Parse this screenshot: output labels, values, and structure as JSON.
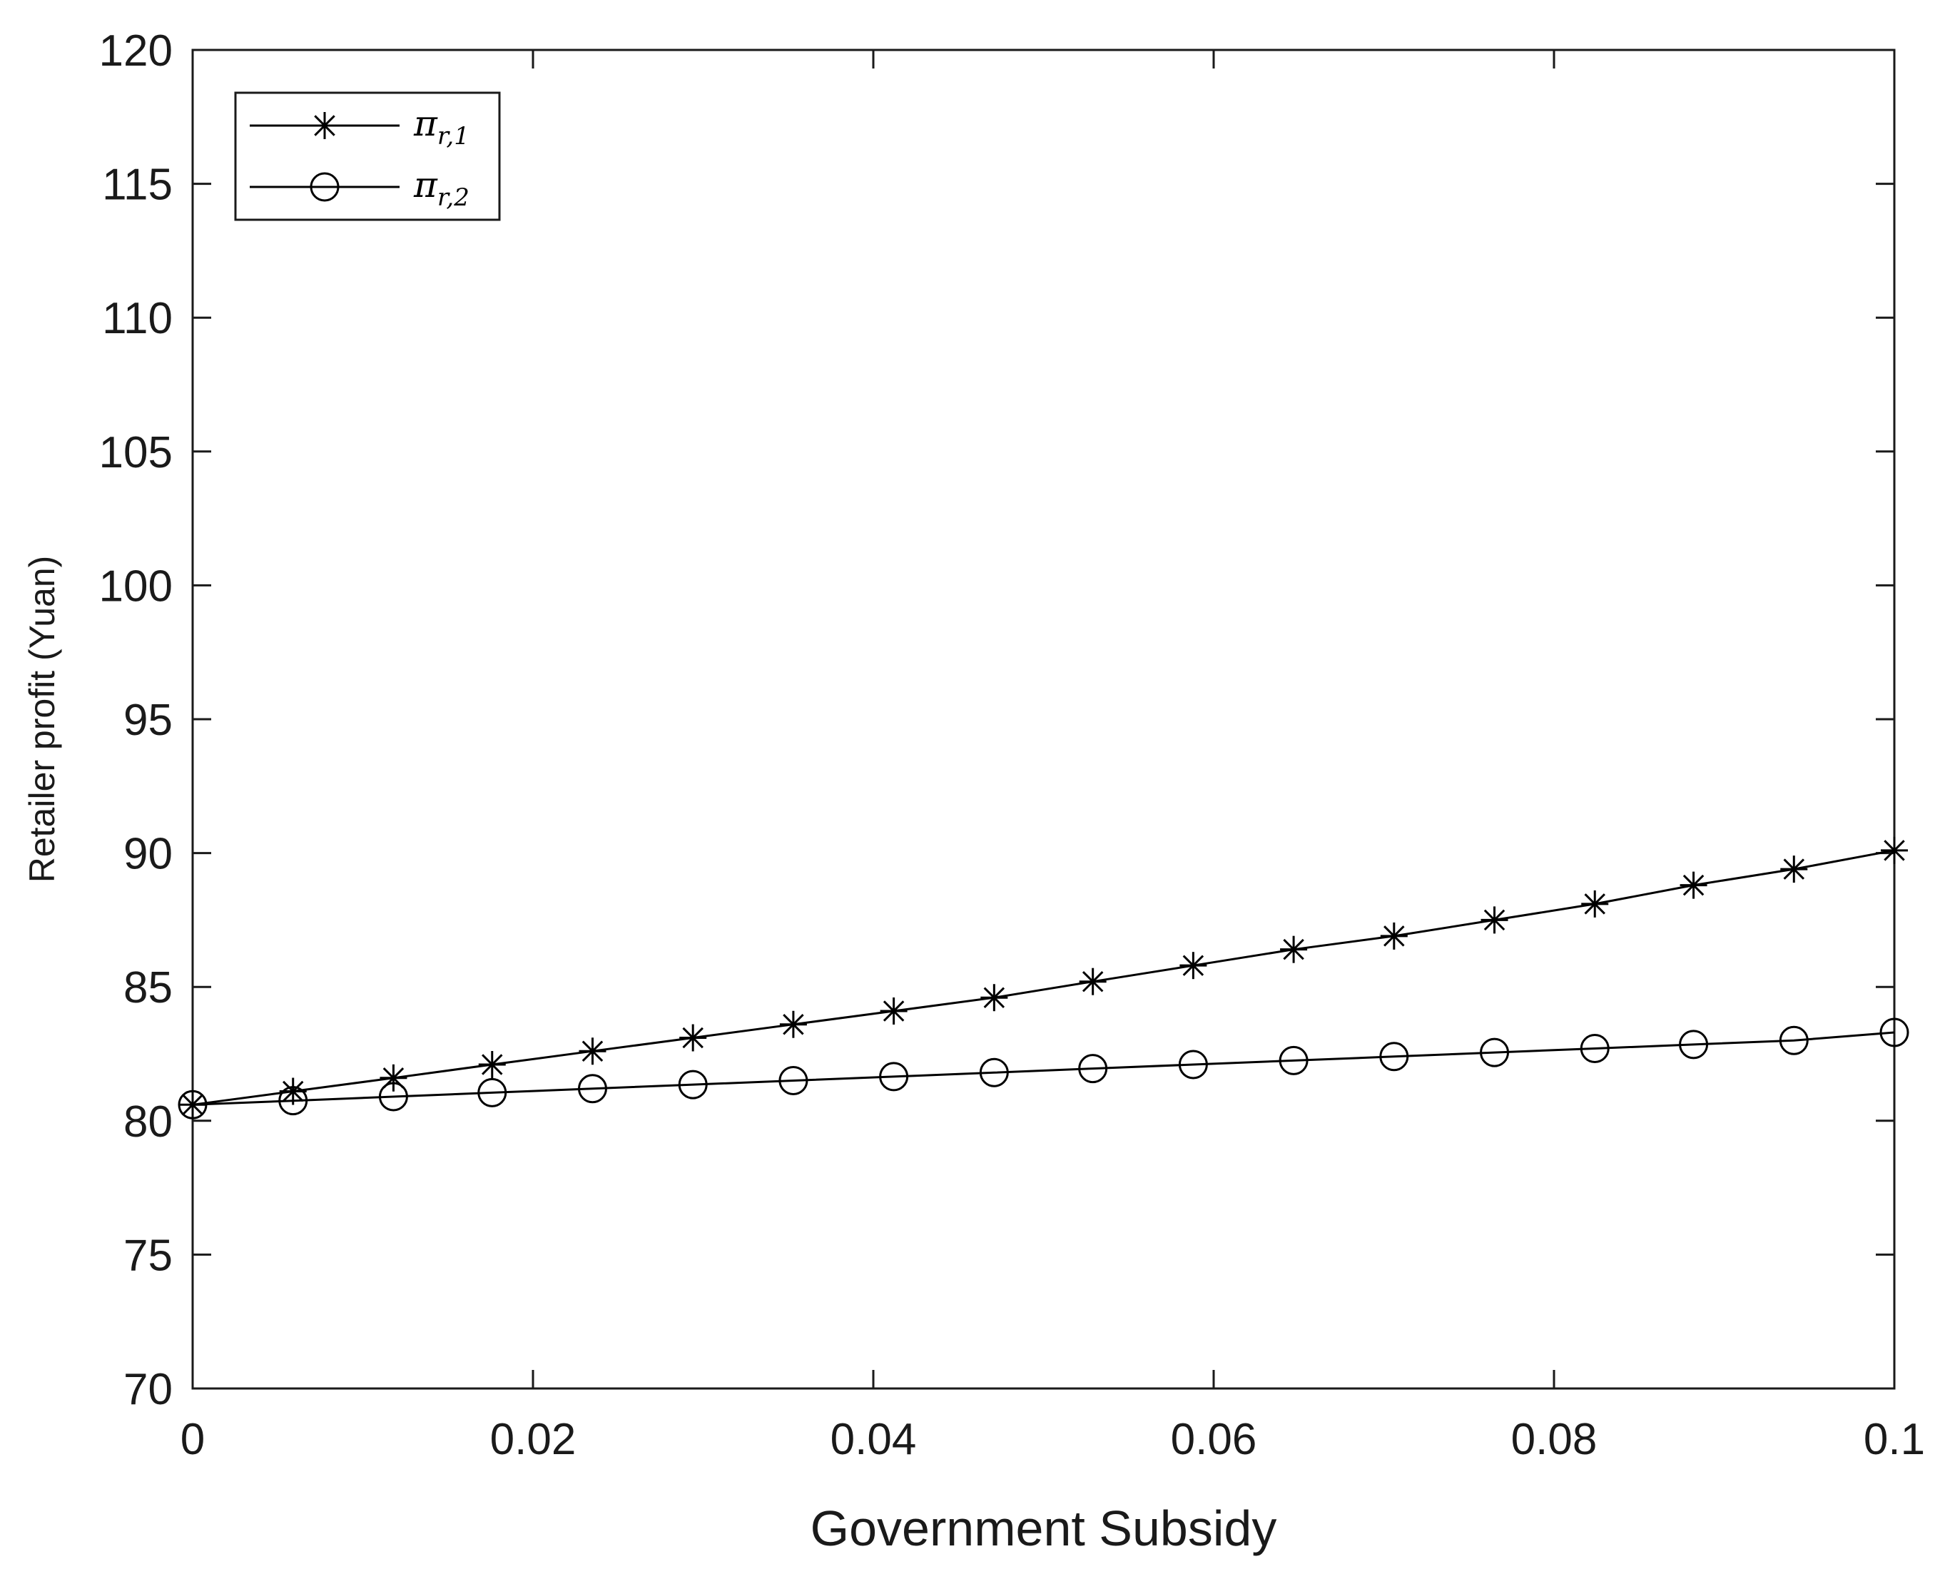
{
  "chart_data": {
    "type": "line",
    "xlabel": "Government Subsidy",
    "ylabel": "Retailer profit (Yuan)",
    "xlim": [
      0,
      0.1
    ],
    "ylim": [
      70,
      120
    ],
    "xticks": [
      0,
      0.02,
      0.04,
      0.06,
      0.08,
      0.1
    ],
    "xtick_labels": [
      "0",
      "0.02",
      "0.04",
      "0.06",
      "0.08",
      "0.1"
    ],
    "yticks": [
      70,
      75,
      80,
      85,
      90,
      95,
      100,
      105,
      110,
      115,
      120
    ],
    "ytick_labels": [
      "70",
      "75",
      "80",
      "85",
      "90",
      "95",
      "100",
      "105",
      "110",
      "115",
      "120"
    ],
    "grid": false,
    "legend_position": "top-left",
    "x": [
      0,
      0.0059,
      0.0118,
      0.0176,
      0.0235,
      0.0294,
      0.0353,
      0.0412,
      0.0471,
      0.0529,
      0.0588,
      0.0647,
      0.0706,
      0.0765,
      0.0824,
      0.0882,
      0.0941,
      0.1
    ],
    "series": [
      {
        "name": "π",
        "subscript": "r,1",
        "marker": "asterisk",
        "color": "#000000",
        "values": [
          80.6,
          81.1,
          81.6,
          82.1,
          82.6,
          83.1,
          83.6,
          84.1,
          84.6,
          85.2,
          85.8,
          86.4,
          86.9,
          87.5,
          88.1,
          88.8,
          89.4,
          90.1
        ]
      },
      {
        "name": "π",
        "subscript": "r,2",
        "marker": "circle",
        "color": "#000000",
        "values": [
          80.6,
          80.75,
          80.9,
          81.05,
          81.2,
          81.35,
          81.5,
          81.65,
          81.8,
          81.95,
          82.1,
          82.25,
          82.4,
          82.55,
          82.7,
          82.85,
          83.0,
          83.3
        ]
      }
    ]
  }
}
